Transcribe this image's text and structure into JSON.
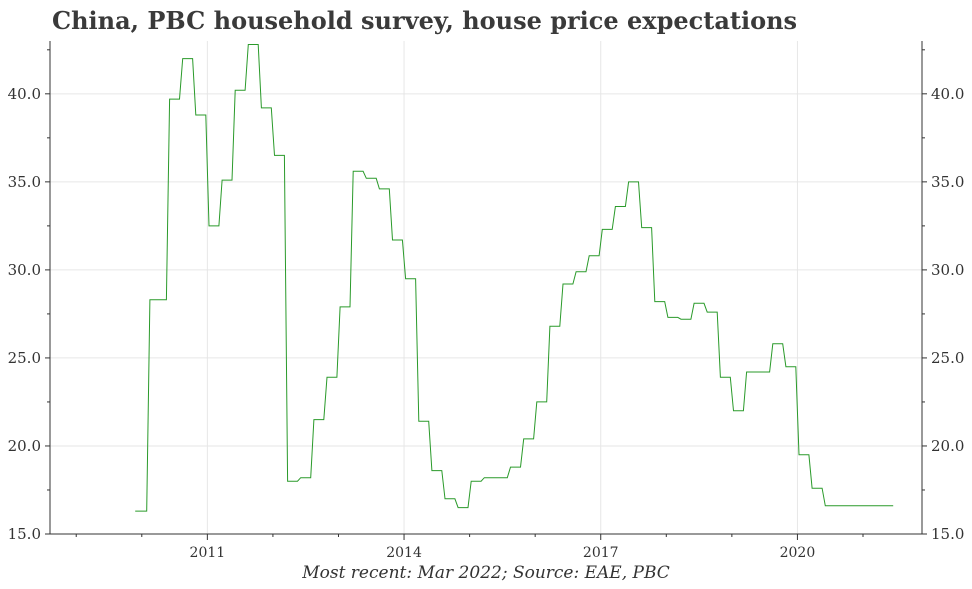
{
  "title": "China, PBC household survey, house price expectations",
  "caption": "Most recent: Mar 2022; Source: EAE, PBC",
  "colors": {
    "line": "#2a9a2a",
    "grid": "#e6e6e6",
    "axis": "#333333"
  },
  "chart_data": {
    "type": "line",
    "title": "China, PBC household survey, house price expectations",
    "xlabel": "",
    "ylabel": "",
    "ylim": [
      15.0,
      43.0
    ],
    "xlim": [
      2008.6,
      2021.9
    ],
    "y_ticks": [
      15.0,
      20.0,
      25.0,
      30.0,
      35.0,
      40.0
    ],
    "y_tick_labels": [
      "15.0",
      "20.0",
      "25.0",
      "30.0",
      "35.0",
      "40.0"
    ],
    "x_ticks": [
      2011,
      2014,
      2017,
      2020
    ],
    "x_tick_labels": [
      "2011",
      "2014",
      "2017",
      "2020"
    ],
    "x_minor_ticks": [
      2009,
      2010,
      2012,
      2013,
      2015,
      2016,
      2018,
      2019,
      2021
    ],
    "grid": true,
    "right_axis_mirror": true,
    "series": [
      {
        "step": "post",
        "x": [
          2009.9,
          2010.1,
          2010.4,
          2010.6,
          2010.8,
          2011.0,
          2011.2,
          2011.4,
          2011.6,
          2011.8,
          2012.0,
          2012.2,
          2012.4,
          2012.6,
          2012.8,
          2013.0,
          2013.2,
          2013.4,
          2013.6,
          2013.8,
          2014.0,
          2014.2,
          2014.4,
          2014.6,
          2014.8,
          2015.0,
          2015.2,
          2015.4,
          2015.6,
          2015.8,
          2016.0,
          2016.2,
          2016.4,
          2016.6,
          2016.8,
          2017.0,
          2017.2,
          2017.4,
          2017.6,
          2017.8,
          2018.0,
          2018.2,
          2018.4,
          2018.6,
          2018.8,
          2019.0,
          2019.2,
          2019.4,
          2019.6,
          2019.8,
          2020.0,
          2020.2,
          2020.4,
          2020.6,
          2020.8,
          2021.0,
          2021.2,
          2021.4
        ],
        "y": [
          16.3,
          28.3,
          39.7,
          42.0,
          38.8,
          32.5,
          35.1,
          40.2,
          42.8,
          39.2,
          36.5,
          18.0,
          18.2,
          21.5,
          23.9,
          27.9,
          35.6,
          35.2,
          34.6,
          31.7,
          29.5,
          21.4,
          18.6,
          17.0,
          16.5,
          18.0,
          18.2,
          18.2,
          18.8,
          20.4,
          22.5,
          26.8,
          29.2,
          29.9,
          30.8,
          32.3,
          33.6,
          35.0,
          32.4,
          28.2,
          27.3,
          27.2,
          28.1,
          27.6,
          23.9,
          22.0,
          24.2,
          24.2,
          25.8,
          24.5,
          19.5,
          17.6,
          16.6,
          16.6,
          16.6,
          16.6,
          16.6,
          16.6
        ]
      }
    ]
  }
}
